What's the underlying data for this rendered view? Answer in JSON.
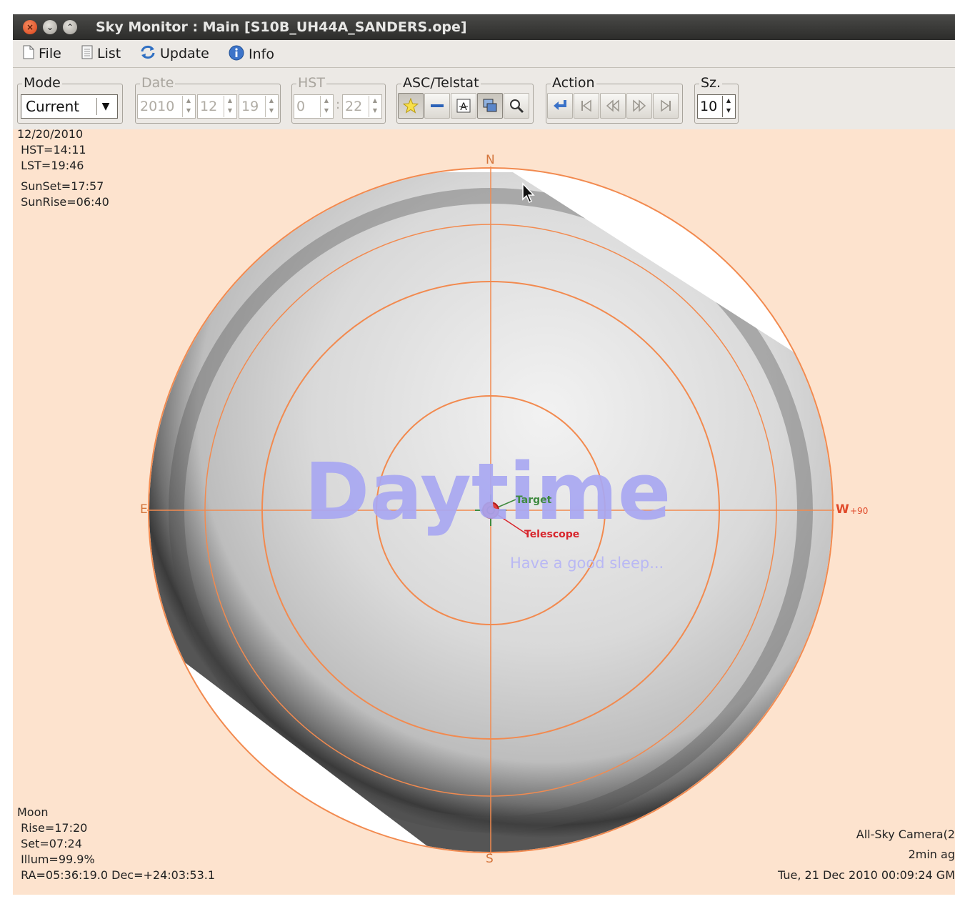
{
  "window": {
    "title": "Sky Monitor : Main [S10B_UH44A_SANDERS.ope]",
    "buttons": [
      "close-icon",
      "minimize-icon",
      "maximize-icon"
    ]
  },
  "menubar": {
    "file": "File",
    "list": "List",
    "update": "Update",
    "info": "Info"
  },
  "toolbar": {
    "mode": {
      "label": "Mode",
      "value": "Current"
    },
    "date": {
      "label": "Date",
      "year": "2010",
      "month": "12",
      "day": "19",
      "disabled": true
    },
    "hst": {
      "label": "HST",
      "hour": "0",
      "minute": "22",
      "separator": ":",
      "disabled": true
    },
    "asc_telstat": {
      "label": "ASC/Telstat",
      "buttons": [
        "star-icon",
        "line-icon",
        "text-a-icon",
        "window-overlay-icon",
        "zoom-icon"
      ]
    },
    "action": {
      "label": "Action",
      "buttons": [
        "return-arrow-icon",
        "skip-first-icon",
        "rewind-icon",
        "fast-forward-icon",
        "skip-last-icon"
      ]
    },
    "size": {
      "label": "Sz.",
      "value": "10"
    }
  },
  "top_left_info": {
    "date": "12/20/2010",
    "hst": " HST=14:11",
    "lst": " LST=19:46",
    "sunset": " SunSet=17:57",
    "sunrise": " SunRise=06:40"
  },
  "compass": {
    "north": "N",
    "south": "S",
    "east": "E",
    "west": "W",
    "west_offset": "+90"
  },
  "overlay": {
    "daytime": "Daytime",
    "sleep_message": "Have a good sleep...",
    "target_label": "Target",
    "telescope_label": "Telescope"
  },
  "moon_info": {
    "title": "Moon",
    "rise": " Rise=17:20",
    "set": " Set=07:24",
    "illum": " Illum=99.9%",
    "radec": " RA=05:36:19.0 Dec=+24:03:53.1"
  },
  "camera_info": {
    "source": "All-Sky Camera(2",
    "age": "2min ag",
    "timestamp": "Tue, 21 Dec 2010 00:09:24 GM"
  },
  "colors": {
    "canvas_bg": "#fde3ce",
    "grid": "#f28a4f",
    "daytime_text": "#a9a8f2",
    "target": "#3f8a3f",
    "telescope": "#d8262d"
  }
}
